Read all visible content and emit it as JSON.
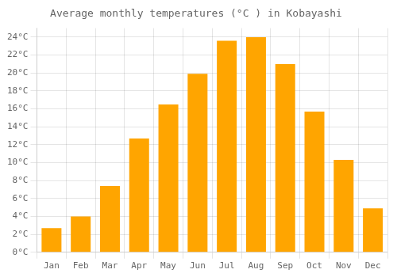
{
  "chart_data": {
    "type": "bar",
    "title": "Average monthly temperatures (°C ) in Kobayashi",
    "categories": [
      "Jan",
      "Feb",
      "Mar",
      "Apr",
      "May",
      "Jun",
      "Jul",
      "Aug",
      "Sep",
      "Oct",
      "Nov",
      "Dec"
    ],
    "values": [
      2.7,
      4.0,
      7.4,
      12.7,
      16.5,
      19.9,
      23.6,
      24.0,
      21.0,
      15.7,
      10.3,
      4.9
    ],
    "color": "#FFA500",
    "ylim": [
      0,
      25
    ],
    "yticks": [
      {
        "value": 0,
        "label": "0°C"
      },
      {
        "value": 2,
        "label": "2°C"
      },
      {
        "value": 4,
        "label": "4°C"
      },
      {
        "value": 6,
        "label": "6°C"
      },
      {
        "value": 8,
        "label": "8°C"
      },
      {
        "value": 10,
        "label": "10°C"
      },
      {
        "value": 12,
        "label": "12°C"
      },
      {
        "value": 14,
        "label": "14°C"
      },
      {
        "value": 16,
        "label": "16°C"
      },
      {
        "value": 18,
        "label": "18°C"
      },
      {
        "value": 20,
        "label": "20°C"
      },
      {
        "value": 22,
        "label": "22°C"
      },
      {
        "value": 24,
        "label": "24°C"
      }
    ],
    "grid": true
  }
}
